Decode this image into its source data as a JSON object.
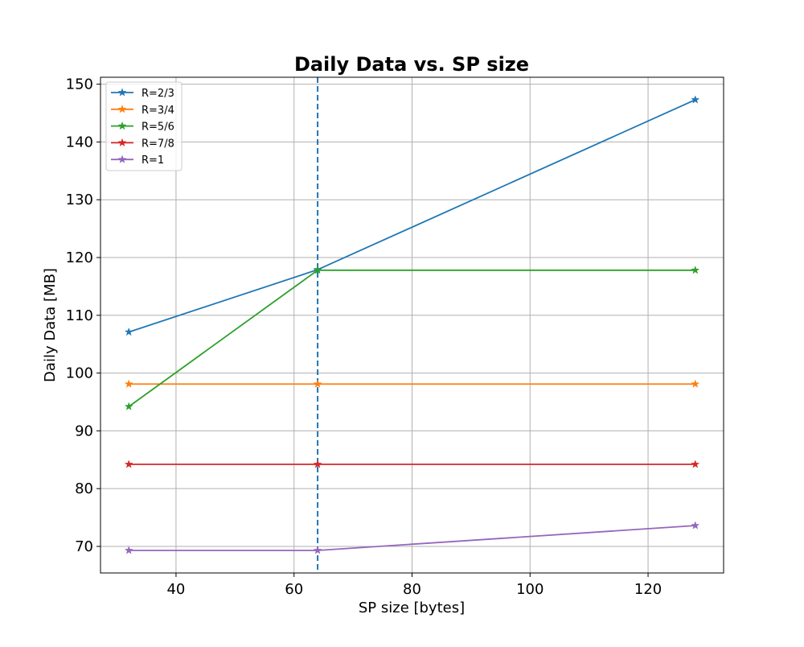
{
  "chart_data": {
    "type": "line",
    "title": "Daily Data vs. SP size",
    "xlabel": "SP size [bytes]",
    "ylabel": "Daily Data [MB]",
    "xlim": [
      27.2,
      132.8
    ],
    "ylim": [
      65.4,
      151.2
    ],
    "xticks": [
      40,
      60,
      80,
      100,
      120
    ],
    "yticks": [
      70,
      80,
      90,
      100,
      110,
      120,
      130,
      140,
      150
    ],
    "grid": true,
    "legend_position": "upper left",
    "marker": "star",
    "x": [
      32,
      64,
      128
    ],
    "series": [
      {
        "name": "R=2/3",
        "color": "#1f77b4",
        "values": [
          107.1,
          117.9,
          147.3
        ]
      },
      {
        "name": "R=3/4",
        "color": "#ff7f0e",
        "values": [
          98.1,
          98.1,
          98.1
        ]
      },
      {
        "name": "R=5/6",
        "color": "#2ca02c",
        "values": [
          94.2,
          117.8,
          117.8
        ]
      },
      {
        "name": "R=7/8",
        "color": "#d62728",
        "values": [
          84.2,
          84.2,
          84.2
        ]
      },
      {
        "name": "R=1",
        "color": "#9467bd",
        "values": [
          69.3,
          69.3,
          73.6
        ]
      }
    ],
    "reference_line": {
      "orientation": "vertical",
      "x": 64,
      "style": "dashed",
      "color": "#1f77b4"
    }
  }
}
